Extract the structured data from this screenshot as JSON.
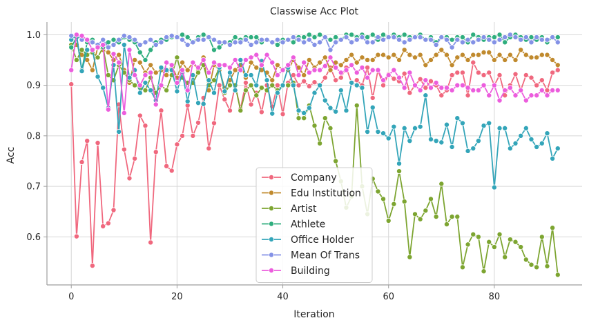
{
  "chart_data": {
    "type": "line",
    "title": "Classwise Acc Plot",
    "xlabel": "Iteration",
    "ylabel": "Acc",
    "xlim": [
      -4.6,
      96.6
    ],
    "ylim": [
      0.505,
      1.025
    ],
    "xticks": [
      0,
      20,
      40,
      60,
      80
    ],
    "yticks": [
      0.6,
      0.7,
      0.8,
      0.9,
      1.0
    ],
    "ytick_labels": [
      "0.6",
      "0.7",
      "0.8",
      "0.9",
      "1.0"
    ],
    "grid": true,
    "legend_position": "center-bottom",
    "x": [
      0,
      1,
      2,
      3,
      4,
      5,
      6,
      7,
      8,
      9,
      10,
      11,
      12,
      13,
      14,
      15,
      16,
      17,
      18,
      19,
      20,
      21,
      22,
      23,
      24,
      25,
      26,
      27,
      28,
      29,
      30,
      31,
      32,
      33,
      34,
      35,
      36,
      37,
      38,
      39,
      40,
      41,
      42,
      43,
      44,
      45,
      46,
      47,
      48,
      49,
      50,
      51,
      52,
      53,
      54,
      55,
      56,
      57,
      58,
      59,
      60,
      61,
      62,
      63,
      64,
      65,
      66,
      67,
      68,
      69,
      70,
      71,
      72,
      73,
      74,
      75,
      76,
      77,
      78,
      79,
      80,
      81,
      82,
      83,
      84,
      85,
      86,
      87,
      88,
      89,
      90,
      91,
      92
    ],
    "series": [
      {
        "name": "Company",
        "color": "#f0687e",
        "values": [
          0.902,
          0.601,
          0.748,
          0.79,
          0.543,
          0.786,
          0.621,
          0.627,
          0.653,
          0.862,
          0.773,
          0.716,
          0.755,
          0.84,
          0.82,
          0.589,
          0.768,
          0.85,
          0.74,
          0.731,
          0.783,
          0.8,
          0.86,
          0.8,
          0.826,
          0.875,
          0.775,
          0.825,
          0.9,
          0.872,
          0.85,
          0.9,
          0.853,
          0.905,
          0.862,
          0.885,
          0.847,
          0.9,
          0.858,
          0.9,
          0.843,
          0.905,
          0.92,
          0.9,
          0.908,
          0.898,
          0.906,
          0.9,
          0.915,
          0.935,
          0.91,
          0.915,
          0.935,
          0.905,
          0.91,
          0.9,
          0.935,
          0.875,
          0.93,
          0.9,
          0.922,
          0.913,
          0.908,
          0.923,
          0.885,
          0.9,
          0.912,
          0.895,
          0.908,
          0.9,
          0.88,
          0.89,
          0.92,
          0.925,
          0.925,
          0.88,
          0.945,
          0.925,
          0.92,
          0.925,
          0.9,
          0.92,
          0.88,
          0.9,
          0.922,
          0.89,
          0.92,
          0.915,
          0.9,
          0.91,
          0.89,
          0.925,
          0.93
        ]
      },
      {
        "name": "Edu Institution",
        "color": "#c08a2e",
        "values": [
          0.975,
          0.98,
          0.96,
          0.95,
          0.93,
          0.975,
          0.97,
          0.965,
          0.95,
          0.96,
          0.93,
          0.905,
          0.95,
          0.945,
          0.925,
          0.94,
          0.925,
          0.93,
          0.92,
          0.94,
          0.915,
          0.945,
          0.93,
          0.945,
          0.93,
          0.955,
          0.89,
          0.94,
          0.93,
          0.895,
          0.91,
          0.93,
          0.94,
          0.915,
          0.945,
          0.935,
          0.93,
          0.925,
          0.91,
          0.94,
          0.93,
          0.93,
          0.95,
          0.935,
          0.92,
          0.95,
          0.935,
          0.945,
          0.955,
          0.93,
          0.945,
          0.94,
          0.95,
          0.96,
          0.945,
          0.955,
          0.95,
          0.95,
          0.96,
          0.96,
          0.955,
          0.96,
          0.95,
          0.97,
          0.96,
          0.955,
          0.96,
          0.94,
          0.95,
          0.96,
          0.97,
          0.96,
          0.94,
          0.955,
          0.96,
          0.95,
          0.96,
          0.96,
          0.965,
          0.965,
          0.95,
          0.96,
          0.95,
          0.96,
          0.95,
          0.97,
          0.96,
          0.955,
          0.955,
          0.96,
          0.96,
          0.95,
          0.94
        ]
      },
      {
        "name": "Artist",
        "color": "#7da531",
        "values": [
          0.98,
          0.95,
          0.97,
          0.96,
          0.965,
          0.955,
          0.975,
          0.92,
          0.91,
          0.94,
          0.925,
          0.91,
          0.9,
          0.895,
          0.89,
          0.915,
          0.885,
          0.9,
          0.89,
          0.92,
          0.955,
          0.915,
          0.905,
          0.905,
          0.925,
          0.94,
          0.9,
          0.91,
          0.935,
          0.885,
          0.9,
          0.9,
          0.85,
          0.89,
          0.9,
          0.88,
          0.895,
          0.89,
          0.9,
          0.89,
          0.9,
          0.9,
          0.905,
          0.835,
          0.835,
          0.86,
          0.82,
          0.785,
          0.835,
          0.815,
          0.75,
          0.71,
          0.658,
          0.68,
          0.86,
          0.7,
          0.645,
          0.715,
          0.69,
          0.675,
          0.632,
          0.665,
          0.73,
          0.67,
          0.56,
          0.645,
          0.635,
          0.652,
          0.675,
          0.64,
          0.705,
          0.625,
          0.64,
          0.64,
          0.54,
          0.585,
          0.605,
          0.6,
          0.532,
          0.59,
          0.58,
          0.605,
          0.56,
          0.595,
          0.59,
          0.58,
          0.555,
          0.545,
          0.54,
          0.6,
          0.542,
          0.618,
          0.525
        ]
      },
      {
        "name": "Athlete",
        "color": "#2fae7e",
        "values": [
          0.975,
          0.995,
          0.93,
          0.985,
          0.99,
          0.975,
          0.975,
          0.985,
          0.99,
          0.985,
          0.995,
          0.99,
          0.985,
          0.965,
          0.95,
          0.97,
          0.985,
          0.99,
          0.99,
          0.995,
          0.995,
          1.0,
          0.995,
          0.985,
          0.995,
          1.0,
          0.995,
          0.97,
          0.975,
          0.985,
          0.985,
          0.995,
          0.99,
          0.995,
          0.995,
          0.995,
          0.985,
          0.99,
          0.985,
          0.98,
          0.99,
          0.99,
          0.985,
          0.995,
          0.995,
          1.0,
          0.995,
          1.0,
          0.995,
          0.99,
          0.995,
          0.99,
          1.0,
          1.0,
          0.995,
          1.0,
          0.995,
          1.0,
          0.99,
          1.0,
          0.995,
          1.0,
          0.995,
          1.0,
          0.995,
          0.995,
          1.0,
          0.99,
          0.995,
          0.985,
          0.995,
          0.995,
          0.99,
          0.995,
          0.995,
          0.985,
          1.0,
          0.995,
          0.99,
          0.995,
          0.995,
          1.0,
          0.985,
          0.995,
          1.0,
          0.995,
          0.99,
          0.995,
          0.99,
          0.995,
          0.985,
          0.995,
          0.995
        ]
      },
      {
        "name": "Office Holder",
        "color": "#33a5b9",
        "values": [
          0.99,
          1.0,
          0.928,
          0.97,
          0.97,
          0.917,
          0.895,
          0.855,
          0.94,
          0.808,
          0.98,
          0.915,
          0.93,
          0.885,
          0.905,
          0.89,
          0.87,
          0.935,
          0.93,
          0.93,
          0.888,
          0.925,
          0.868,
          0.92,
          0.865,
          0.863,
          0.91,
          0.885,
          0.935,
          0.888,
          0.925,
          0.89,
          0.95,
          0.92,
          0.92,
          0.9,
          0.948,
          0.91,
          0.844,
          0.885,
          0.9,
          0.935,
          0.9,
          0.85,
          0.845,
          0.855,
          0.885,
          0.9,
          0.87,
          0.855,
          0.848,
          0.89,
          0.85,
          0.905,
          0.9,
          0.895,
          0.808,
          0.856,
          0.808,
          0.805,
          0.795,
          0.818,
          0.745,
          0.815,
          0.79,
          0.815,
          0.818,
          0.88,
          0.793,
          0.79,
          0.787,
          0.822,
          0.778,
          0.835,
          0.825,
          0.77,
          0.775,
          0.79,
          0.82,
          0.825,
          0.698,
          0.815,
          0.815,
          0.775,
          0.785,
          0.8,
          0.815,
          0.793,
          0.778,
          0.785,
          0.805,
          0.755,
          0.775
        ]
      },
      {
        "name": "Mean Of Trans",
        "color": "#8492e6",
        "values": [
          0.998,
          1.0,
          0.99,
          0.99,
          0.985,
          0.98,
          0.99,
          0.975,
          0.98,
          0.99,
          0.998,
          0.995,
          0.99,
          0.98,
          0.985,
          0.99,
          0.98,
          0.985,
          0.995,
          0.998,
          0.995,
          0.99,
          0.98,
          0.985,
          0.99,
          0.99,
          0.995,
          0.99,
          0.985,
          0.985,
          0.98,
          0.985,
          0.985,
          0.99,
          0.98,
          0.985,
          0.99,
          0.99,
          0.985,
          0.99,
          0.985,
          0.99,
          0.995,
          0.99,
          0.985,
          0.99,
          0.98,
          0.985,
          0.995,
          0.97,
          0.985,
          0.99,
          0.995,
          0.985,
          0.99,
          0.995,
          0.985,
          0.985,
          0.995,
          0.99,
          0.995,
          0.995,
          0.99,
          0.985,
          0.99,
          0.995,
          0.995,
          0.99,
          0.99,
          0.98,
          0.995,
          0.99,
          0.975,
          0.99,
          0.985,
          0.99,
          0.985,
          0.99,
          0.995,
          0.99,
          0.985,
          0.99,
          0.995,
          1.0,
          0.995,
          0.99,
          0.995,
          0.985,
          0.995,
          0.99,
          0.99,
          0.995,
          0.985
        ]
      },
      {
        "name": "Building",
        "color": "#ec5ddd",
        "values": [
          0.93,
          1.0,
          0.998,
          0.99,
          0.97,
          0.975,
          0.98,
          0.852,
          0.962,
          0.945,
          0.845,
          0.97,
          0.92,
          0.9,
          0.92,
          0.925,
          0.862,
          0.9,
          0.945,
          0.94,
          0.905,
          0.93,
          0.89,
          0.945,
          0.935,
          0.95,
          0.925,
          0.945,
          0.94,
          0.94,
          0.935,
          0.95,
          0.93,
          0.95,
          0.955,
          0.96,
          0.94,
          0.96,
          0.945,
          0.92,
          0.93,
          0.94,
          0.955,
          0.92,
          0.945,
          0.925,
          0.93,
          0.93,
          0.938,
          0.955,
          0.935,
          0.925,
          0.93,
          0.94,
          0.925,
          0.935,
          0.915,
          0.93,
          0.93,
          0.91,
          0.92,
          0.93,
          0.915,
          0.895,
          0.925,
          0.9,
          0.89,
          0.91,
          0.895,
          0.905,
          0.895,
          0.895,
          0.89,
          0.9,
          0.9,
          0.895,
          0.89,
          0.89,
          0.9,
          0.88,
          0.9,
          0.87,
          0.89,
          0.895,
          0.88,
          0.89,
          0.87,
          0.88,
          0.88,
          0.89,
          0.88,
          0.89,
          0.89
        ]
      }
    ]
  }
}
